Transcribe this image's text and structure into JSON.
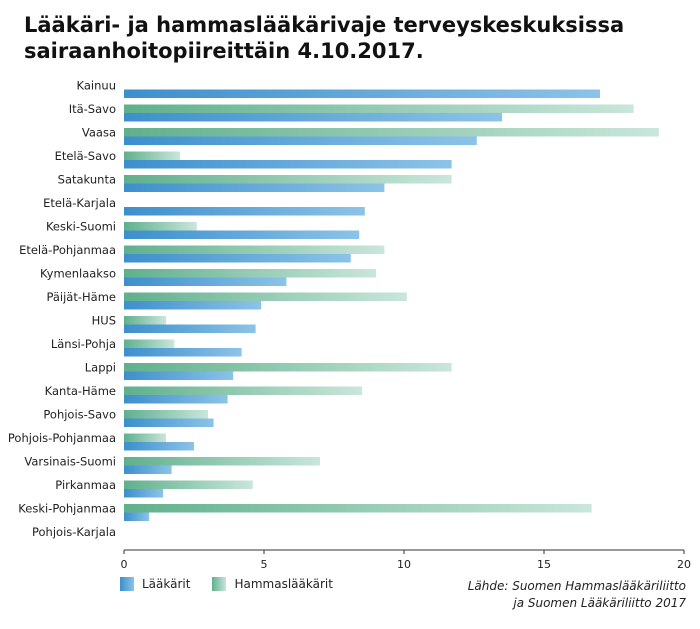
{
  "title": "Lääkäri- ja hammaslääkärivaje terveyskeskuksissa sairaanhoitopiireittäin 4.10.2017.",
  "source_line1": "Lähde: Suomen Hammaslääkäriliitto",
  "source_line2": "ja Suomen Lääkäriliitto 2017",
  "colors": {
    "laakarit_start": "#3d8fcc",
    "laakarit_end": "#8cc3e8",
    "hammas_start": "#5fb08d",
    "hammas_end": "#c9e6da"
  },
  "chart_data": {
    "type": "bar",
    "orientation": "horizontal",
    "xlim": [
      0,
      20
    ],
    "xticks": [
      0,
      5,
      10,
      15,
      20
    ],
    "legend_position": "bottom-left",
    "grid": false,
    "categories": [
      "Kainuu",
      "Itä-Savo",
      "Vaasa",
      "Etelä-Savo",
      "Satakunta",
      "Etelä-Karjala",
      "Keski-Suomi",
      "Etelä-Pohjanmaa",
      "Kymenlaakso",
      "Päijät-Häme",
      "HUS",
      "Länsi-Pohja",
      "Lappi",
      "Kanta-Häme",
      "Pohjois-Savo",
      "Pohjois-Pohjanmaa",
      "Varsinais-Suomi",
      "Pirkanmaa",
      "Keski-Pohjanmaa",
      "Pohjois-Karjala"
    ],
    "series": [
      {
        "name": "Hammaslääkärit",
        "values": [
          0,
          18.2,
          19.1,
          2.0,
          11.7,
          0,
          2.6,
          9.3,
          9.0,
          10.1,
          1.5,
          1.8,
          11.7,
          8.5,
          3.0,
          1.5,
          7.0,
          4.6,
          16.7,
          0
        ]
      },
      {
        "name": "Lääkärit",
        "values": [
          17.0,
          13.5,
          12.6,
          11.7,
          9.3,
          8.6,
          8.4,
          8.1,
          5.8,
          4.9,
          4.7,
          4.2,
          3.9,
          3.7,
          3.2,
          2.5,
          1.7,
          1.4,
          0.9,
          0
        ]
      }
    ]
  }
}
